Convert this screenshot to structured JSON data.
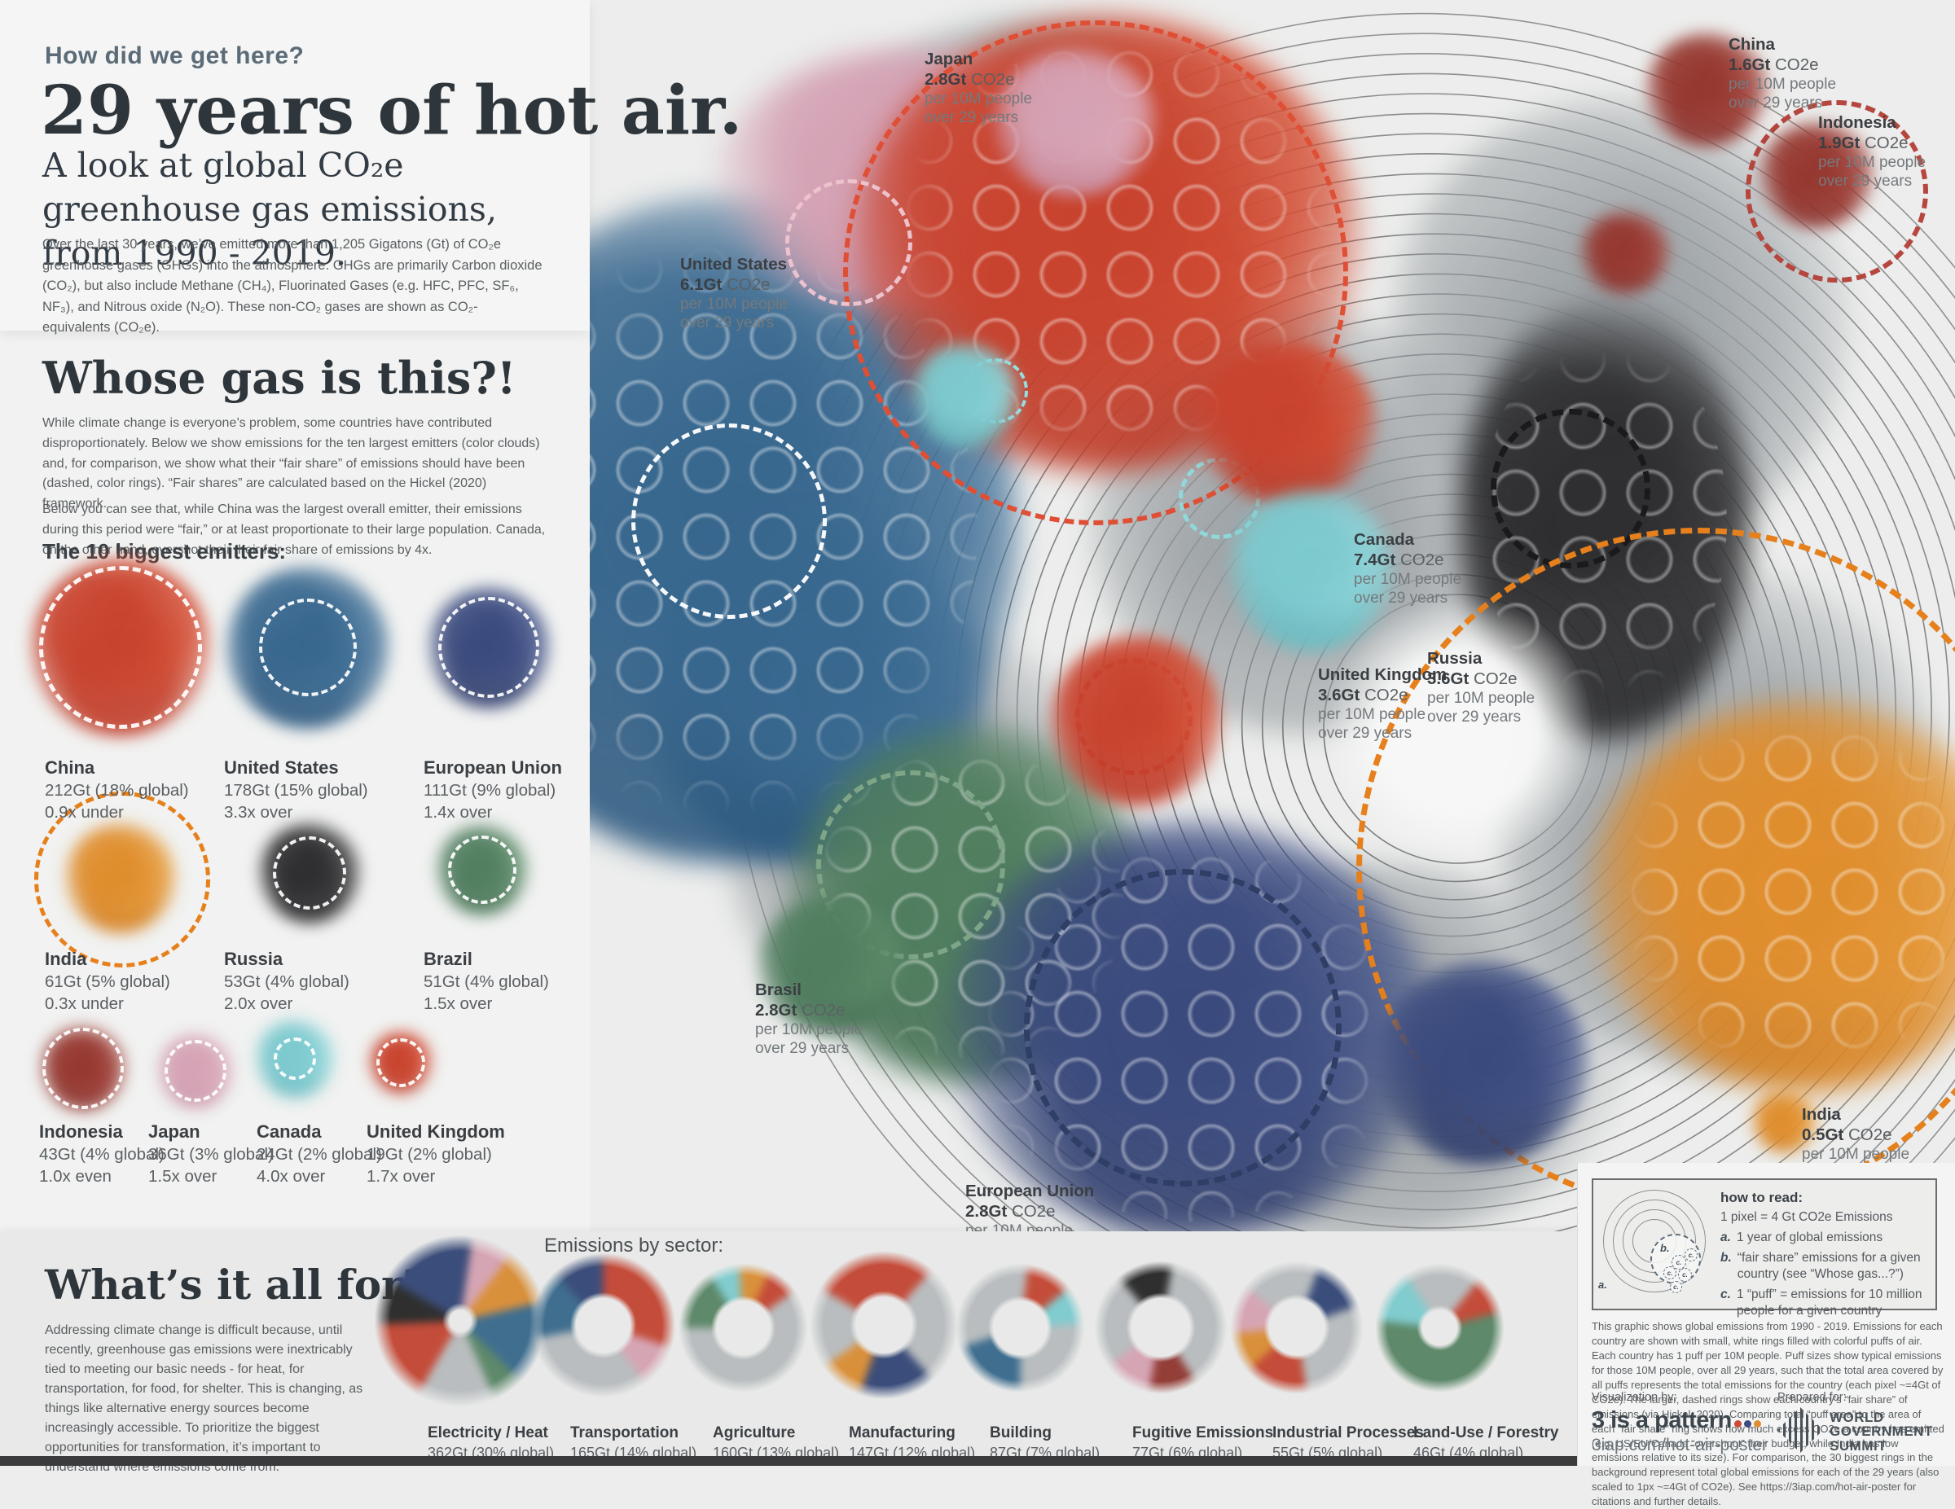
{
  "header": {
    "kicker": "How did we get here?",
    "title": "29 years of hot air.",
    "subtitle": "A look at global CO₂e greenhouse gas emissions, from 1990 - 2019.",
    "intro": "Over the last 30 years, we’ve emitted more than 1,205 Gigatons (Gt) of CO₂e greenhouse gases (GHGs) into the atmosphere. GHGs are primarily Carbon dioxide (CO₂), but also include Methane (CH₄), Fluorinated Gases (e.g. HFC, PFC, SF₆, NF₃), and Nitrous oxide (N₂O). These non-CO₂ gases are shown as CO₂-equivalents (CO₂e)."
  },
  "whose_gas": {
    "title": "Whose gas is this?!",
    "para1": "While climate change is everyone’s problem, some countries have contributed disproportionately. Below we show emissions for the ten largest emitters (color clouds) and, for comparison, we show what their “fair share” of emissions should have been (dashed, color rings).  “Fair shares” are calculated based on the Hickel (2020) framework.",
    "para2": "Below you can see that, while China was the largest overall emitter, their emissions during this period were “fair,” or at least proportionate to their large population. Canada, on the other hand, overshot their their fair share of emissions by 4x.",
    "emitters_heading": "The 10 biggest emitters:"
  },
  "emitters": [
    {
      "name": "China",
      "total": "212Gt (18% global)",
      "ratio": "0.9x under",
      "color": "#c8432e"
    },
    {
      "name": "United States",
      "total": "178Gt (15% global)",
      "ratio": "3.3x over",
      "color": "#38678e"
    },
    {
      "name": "European Union",
      "total": "111Gt (9% global)",
      "ratio": "1.4x over",
      "color": "#3a4a7d"
    },
    {
      "name": "India",
      "total": "61Gt (5% global)",
      "ratio": "0.3x under",
      "color": "#df8d2d"
    },
    {
      "name": "Russia",
      "total": "53Gt (4% global)",
      "ratio": "2.0x over",
      "color": "#2d2d2f"
    },
    {
      "name": "Brazil",
      "total": "51Gt (4% global)",
      "ratio": "1.5x over",
      "color": "#4f7d5e"
    },
    {
      "name": "Indonesia",
      "total": "43Gt (4% global)",
      "ratio": "1.0x even",
      "color": "#95372f"
    },
    {
      "name": "Japan",
      "total": "36Gt (3% global)",
      "ratio": "1.5x over",
      "color": "#d4a2b4"
    },
    {
      "name": "Canada",
      "total": "24Gt (2% global)",
      "ratio": "4.0x over",
      "color": "#7cc9ce"
    },
    {
      "name": "United Kingdom",
      "total": "19Gt (2% global)",
      "ratio": "1.7x over",
      "color": "#bf4a40"
    }
  ],
  "map_labels": [
    {
      "country": "United States",
      "value": "6.1Gt",
      "gas": "CO2e",
      "per1": "per 10M people",
      "per2": "over 29 years"
    },
    {
      "country": "Japan",
      "value": "2.8Gt",
      "gas": "CO2e",
      "per1": "per 10M people",
      "per2": "over 29 years"
    },
    {
      "country": "China",
      "value": "1.6Gt",
      "gas": "CO2e",
      "per1": "per 10M people",
      "per2": "over 29 years"
    },
    {
      "country": "Indonesia",
      "value": "1.9Gt",
      "gas": "CO2e",
      "per1": "per 10M people",
      "per2": "over 29 years"
    },
    {
      "country": "Canada",
      "value": "7.4Gt",
      "gas": "CO2e",
      "per1": "per 10M people",
      "per2": "over 29 years"
    },
    {
      "country": "United Kingdom",
      "value": "3.6Gt",
      "gas": "CO2e",
      "per1": "per 10M people",
      "per2": "over 29 years"
    },
    {
      "country": "Russia",
      "value": "3.6Gt",
      "gas": "CO2e",
      "per1": "per 10M people",
      "per2": "over 29 years"
    },
    {
      "country": "Brasil",
      "value": "2.8Gt",
      "gas": "CO2e",
      "per1": "per 10M people",
      "per2": "over 29 years"
    },
    {
      "country": "European Union",
      "value": "2.8Gt",
      "gas": "CO2e",
      "per1": "per 10M people",
      "per2": "over 29 years"
    },
    {
      "country": "India",
      "value": "0.5Gt",
      "gas": "CO2e",
      "per1": "per 10M people",
      "per2": "over 29 years"
    }
  ],
  "how_to_read": {
    "title": "how to read:",
    "scale": "1 pixel = 4 Gt CO2e Emissions",
    "items": [
      {
        "key": "a.",
        "text": "1 year of global emissions"
      },
      {
        "key": "b.",
        "text": "“fair share” emissions for a given country (see “Whose gas...?”)"
      },
      {
        "key": "c.",
        "text": "1 “puff” = emissions for 10 million people for a given country"
      }
    ]
  },
  "fine_print": "This graphic shows global emissions from 1990 - 2019. Emissions for each country are shown with small, white rings filled with colorful puffs of air. Each country has 1 puff per 10M people. Puff sizes show typical emissions for those 10M people, over all 29 years, such that the total area covered by all puffs represents the total emissions for the country (each pixel ~=4Gt of CO2e). The larger, dashed rings show each country’s “fair share” of emissions (via Hickel, 2020). Comparing total “puff area” to the area of each “fair share” ring shows how much excess CO2e a country has emitted (e.g. US/EU/Canada “overshoot” their budget, while India has low emissions relative to its size). For comparison, the 30 biggest rings in the background represent total global emissions for each of the 29 years (also scaled to 1px ~=4Gt of CO2e). See https://3iap.com/hot-air-poster for citations and further details.",
  "credits": {
    "viz_label": "Visualization by:",
    "viz_name": "3 is a pattern",
    "viz_url": "3iap.com/hot-air-poster",
    "prepared_label": "Prepared for:",
    "prepared_name_1": "WORLD",
    "prepared_name_2": "GOVERNMENT",
    "prepared_name_3": "SUMMIT"
  },
  "whats_it_for": {
    "title": "What’s it all for?",
    "para": "Addressing climate change is difficult because, until recently, greenhouse gas emissions were inextricably tied to meeting our basic needs - for heat, for transportation, for food, for shelter. This is changing, as things like alternative energy sources become increasingly accessible. To prioritize the biggest opportunities for transformation, it’s important to understand where emissions come from."
  },
  "sectors": {
    "heading": "Emissions by sector:",
    "items": [
      {
        "name": "Electricity / Heat",
        "value": "362Gt (30% global)"
      },
      {
        "name": "Transportation",
        "value": "165Gt (14% global)"
      },
      {
        "name": "Agriculture",
        "value": "160Gt (13% global)"
      },
      {
        "name": "Manufacturing",
        "value": "147Gt (12% global)"
      },
      {
        "name": "Building",
        "value": "87Gt (7% global)"
      },
      {
        "name": "Fugitive Emissions",
        "value": "77Gt (6% global)"
      },
      {
        "name": "Industrial Processes",
        "value": "55Gt (5% global)"
      },
      {
        "name": "Land-Use / Forestry",
        "value": "46Gt (4% global)"
      }
    ]
  },
  "chart_data": [
    {
      "type": "bubble",
      "title": "The 10 biggest emitters (total Gt CO2e 1990-2019, share of global, fair-share ratio)",
      "categories": [
        "China",
        "United States",
        "European Union",
        "India",
        "Russia",
        "Brazil",
        "Indonesia",
        "Japan",
        "Canada",
        "United Kingdom"
      ],
      "series": [
        {
          "name": "total_gt",
          "values": [
            212,
            178,
            111,
            61,
            53,
            51,
            43,
            36,
            24,
            19
          ]
        },
        {
          "name": "global_share_pct",
          "values": [
            18,
            15,
            9,
            5,
            4,
            4,
            4,
            3,
            2,
            2
          ]
        },
        {
          "name": "fair_share_ratio",
          "values": [
            "0.9x under",
            "3.3x over",
            "1.4x over",
            "0.3x under",
            "2.0x over",
            "1.5x over",
            "1.0x even",
            "1.5x over",
            "4.0x over",
            "1.7x over"
          ]
        },
        {
          "name": "gt_co2e_per_10M_people_over_29_years",
          "values": [
            1.6,
            6.1,
            2.8,
            0.5,
            3.6,
            2.8,
            1.9,
            2.8,
            7.4,
            3.6
          ]
        }
      ],
      "colors": [
        "#c8432e",
        "#38678e",
        "#3a4a7d",
        "#df8d2d",
        "#2d2d2f",
        "#4f7d5e",
        "#95372f",
        "#d4a2b4",
        "#7cc9ce",
        "#bf4a40"
      ],
      "notes": "1 pixel = 4 Gt CO2e; 30 background rings = annual global emissions 1990-2019; total emitted 1,205 Gt CO2e"
    },
    {
      "type": "pie",
      "title": "Emissions by sector",
      "categories": [
        "Electricity / Heat",
        "Transportation",
        "Agriculture",
        "Manufacturing",
        "Building",
        "Fugitive Emissions",
        "Industrial Processes",
        "Land-Use / Forestry"
      ],
      "values": [
        362,
        165,
        160,
        147,
        87,
        77,
        55,
        46
      ],
      "shares_pct": [
        30,
        14,
        13,
        12,
        7,
        6,
        5,
        4
      ]
    }
  ]
}
